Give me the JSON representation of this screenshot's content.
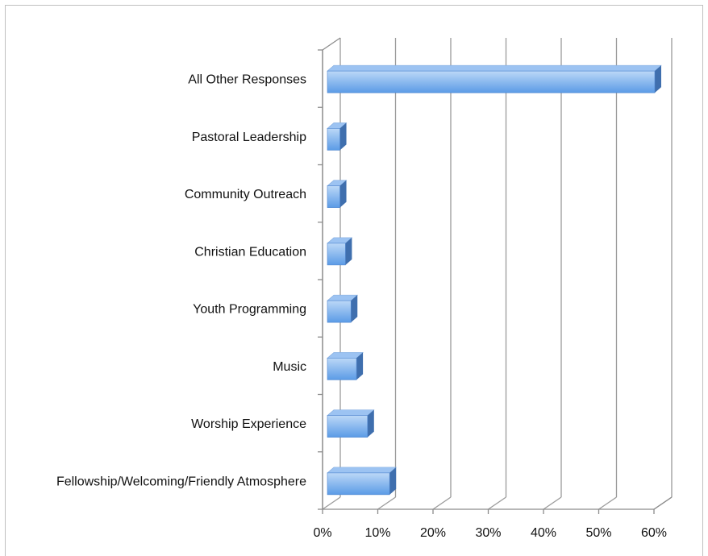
{
  "chart_data": {
    "type": "bar",
    "orientation": "horizontal",
    "style": "3d",
    "categories": [
      "All Other Responses",
      "Pastoral Leadership",
      "Community Outreach",
      "Christian Education",
      "Youth Programming",
      "Music",
      "Worship Experience",
      "Fellowship/Welcoming/Friendly Atmosphere"
    ],
    "values": [
      60,
      3,
      3,
      4,
      5,
      6,
      8,
      12
    ],
    "xlim": [
      0,
      60
    ],
    "xticks": [
      0,
      10,
      20,
      30,
      40,
      50,
      60
    ],
    "xtick_labels": [
      "0%",
      "10%",
      "20%",
      "30%",
      "40%",
      "50%",
      "60%"
    ],
    "title": "",
    "xlabel": "",
    "ylabel": "",
    "grid": "vertical",
    "legend": "none",
    "colors": {
      "bar_front_top": "#bcd8f7",
      "bar_front_bottom": "#5b9be6",
      "bar_top": "#9cc3f2",
      "bar_side": "#3f6fae",
      "grid": "#9a9a9a",
      "axis": "#8c8c8c"
    }
  }
}
